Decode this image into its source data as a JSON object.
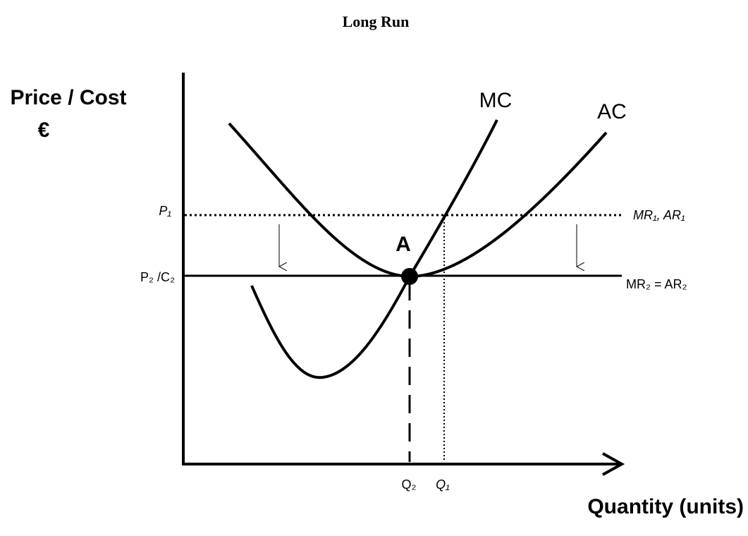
{
  "title": "Long Run",
  "y_axis_label": {
    "line1": "Price / Cost",
    "line2": "€"
  },
  "x_axis_label": "Quantity (units)",
  "curves": {
    "mc": "MC",
    "ac": "AC"
  },
  "lines": {
    "p1": "P₁",
    "p1_right": "MR₁, AR₁",
    "p2": "P₂ /C₂",
    "p2_right": "MR₂ = AR₂"
  },
  "point": "A",
  "quantities": {
    "q2": "Q₂",
    "q1": "Q₁"
  }
}
